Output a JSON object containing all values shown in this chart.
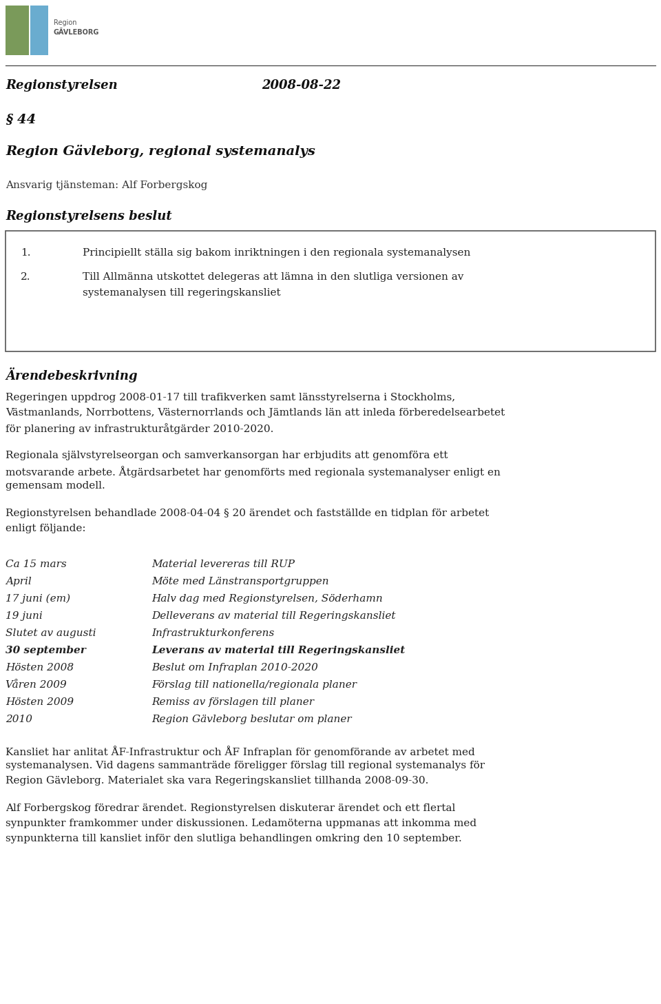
{
  "background_color": "#ffffff",
  "logo_colors": {
    "green": "#7a9a5a",
    "blue": "#6aaccf"
  },
  "header_left": "Regionstyrelsen",
  "header_right": "2008-08-22",
  "section_symbol": "§ 44",
  "title": "Region Gävleborg, regional systemanalys",
  "responsible": "Ansvarig tjänsteman: Alf Forbergskog",
  "beslut_heading": "Regionstyrelsens beslut",
  "beslut_items": [
    "1.   Principiellt ställa sig bakom inriktningen i den regionala systemanalysen",
    "2.   Till Allmänna utskottet delegeras att lämna in den slutliga versionen av\n     systemanalysen till regeringskansliet"
  ],
  "arendebeskrivning_heading": "Ärendebeskrivning",
  "para1": "Regeringen uppdrog 2008-01-17 till trafikverken samt länsstyrelserna i Stockholms,\nVästmanlands, Norrbottens, Västernorrlands och Jämtlands län att inleda förberedelsearbetet\nför planering av infrastrukturåtgärder 2010-2020.",
  "para2": "Regionala självstyrelseorgan och samverkansorgan har erbjudits att genomföra ett\nmotsvarande arbete. Åtgärdsarbetet har genomförts med regionala systemanalyser enligt en\ngemensam modell.",
  "para3": "Regionstyrelsen behandlade 2008-04-04 § 20 ärendet och fastställde en tidplan för arbetet\nenligt följande:",
  "timeline_left": [
    "Ca 15 mars",
    "April",
    "17 juni (em)",
    "19 juni",
    "Slutet av augusti",
    "30 september",
    "Hösten 2008",
    "Våren 2009",
    "Hösten 2009",
    "2010"
  ],
  "timeline_right": [
    "Material levereras till RUP",
    "Möte med Länstransportgruppen",
    "Halv dag med Regionstyrelsen, Söderhamn",
    "Delleverans av material till Regeringskansliet",
    "Infrastrukturkonferens",
    "Leverans av material till Regeringskansliet",
    "Beslut om Infraplan 2010-2020",
    "Förslag till nationella/regionala planer",
    "Remiss av förslagen till planer",
    "Region Gävleborg beslutar om planer"
  ],
  "timeline_bold": [
    5
  ],
  "para4": "Kansliet har anlitat ÅF-Infrastruktur och ÅF Infraplan för genomförande av arbetet med\nsystemanalysen. Vid dagens sammanträde föreligger förslag till regional systemanalys för\nRegion Gävleborg. Materialet ska vara Regeringskansliet tillhanda 2008-09-30.",
  "para5": "Alf Forbergskog föredrar ärendet. Regionstyrelsen diskuterar ärendet och ett flertal\nsynpunkter framkommer under diskussionen. Ledamöterna uppmanas att inkomma med\nsynpunkterna till kansliet inför den slutliga behandlingen omkring den 10 september."
}
